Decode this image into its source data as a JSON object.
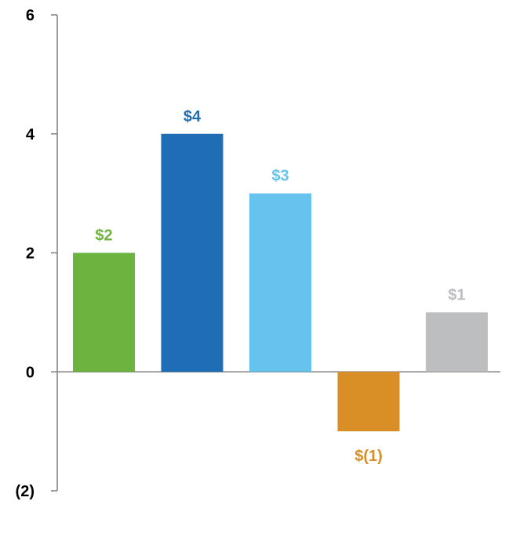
{
  "chart_data": {
    "type": "bar",
    "title": "",
    "xlabel": "",
    "ylabel": "",
    "ylim": [
      -2,
      6
    ],
    "yticks": [
      6,
      4,
      2,
      0,
      -2
    ],
    "ytick_labels": [
      "6",
      "4",
      "2",
      "0",
      "(2)"
    ],
    "grid": false,
    "values": [
      2,
      4,
      3,
      -1,
      1
    ],
    "labels": [
      "$2",
      "$4",
      "$3",
      "$(1)",
      "$1"
    ],
    "colors": [
      "#6DB33F",
      "#1F6DB5",
      "#66C3EE",
      "#D98E26",
      "#BDBEC0"
    ]
  }
}
